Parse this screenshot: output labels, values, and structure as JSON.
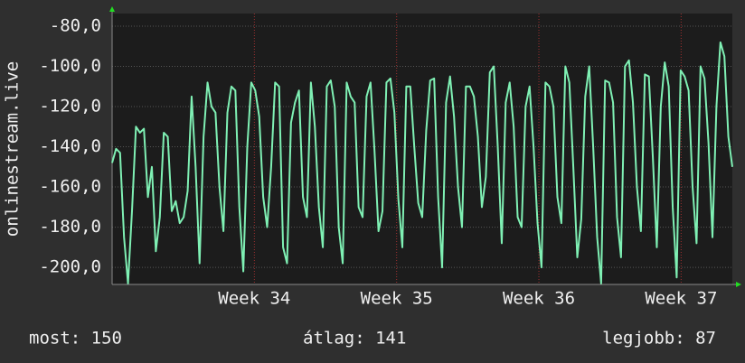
{
  "chart_data": {
    "type": "line",
    "y_label": "onlinestream.live",
    "series": [
      {
        "name": "onlinestream.live",
        "color": "#7ff0b4",
        "values": [
          -148,
          -141,
          -143,
          -185,
          -208,
          -172,
          -130,
          -133,
          -131,
          -165,
          -150,
          -192,
          -175,
          -133,
          -135,
          -172,
          -167,
          -178,
          -175,
          -162,
          -115,
          -150,
          -198,
          -135,
          -108,
          -120,
          -123,
          -160,
          -182,
          -123,
          -110,
          -112,
          -170,
          -202,
          -140,
          -108,
          -112,
          -125,
          -165,
          -180,
          -150,
          -108,
          -110,
          -190,
          -198,
          -128,
          -118,
          -112,
          -165,
          -175,
          -108,
          -130,
          -170,
          -190,
          -110,
          -107,
          -120,
          -180,
          -198,
          -108,
          -115,
          -118,
          -170,
          -175,
          -115,
          -108,
          -142,
          -182,
          -172,
          -108,
          -106,
          -123,
          -166,
          -190,
          -110,
          -110,
          -140,
          -168,
          -175,
          -132,
          -107,
          -106,
          -165,
          -200,
          -118,
          -105,
          -125,
          -160,
          -180,
          -110,
          -110,
          -115,
          -135,
          -170,
          -155,
          -103,
          -100,
          -140,
          -188,
          -118,
          -108,
          -130,
          -175,
          -180,
          -120,
          -110,
          -140,
          -178,
          -200,
          -108,
          -110,
          -120,
          -165,
          -178,
          -100,
          -108,
          -150,
          -195,
          -176,
          -115,
          -100,
          -140,
          -185,
          -208,
          -107,
          -108,
          -118,
          -175,
          -195,
          -100,
          -97,
          -118,
          -160,
          -182,
          -104,
          -105,
          -145,
          -190,
          -120,
          -98,
          -110,
          -170,
          -205,
          -102,
          -105,
          -112,
          -160,
          -188,
          -100,
          -106,
          -138,
          -185,
          -120,
          -88,
          -95,
          -135,
          -150
        ]
      }
    ],
    "ylim": [
      -208.5,
      -73.7
    ],
    "yticks": [
      {
        "value": -80,
        "label": "-80,0"
      },
      {
        "value": -100,
        "label": "-100,0"
      },
      {
        "value": -120,
        "label": "-120,0"
      },
      {
        "value": -140,
        "label": "-140,0"
      },
      {
        "value": -160,
        "label": "-160,0"
      },
      {
        "value": -180,
        "label": "-180,0"
      },
      {
        "value": -200,
        "label": "-200,0"
      }
    ],
    "xlim": [
      33.0,
      37.36
    ],
    "xticks": [
      {
        "value": 34,
        "label": "Week 34"
      },
      {
        "value": 35,
        "label": "Week 35"
      },
      {
        "value": 36,
        "label": "Week 36"
      },
      {
        "value": 37,
        "label": "Week 37"
      }
    ],
    "grid": true,
    "stats": [
      "most: 150",
      "átlag: 141",
      "legjobb: 87"
    ]
  }
}
